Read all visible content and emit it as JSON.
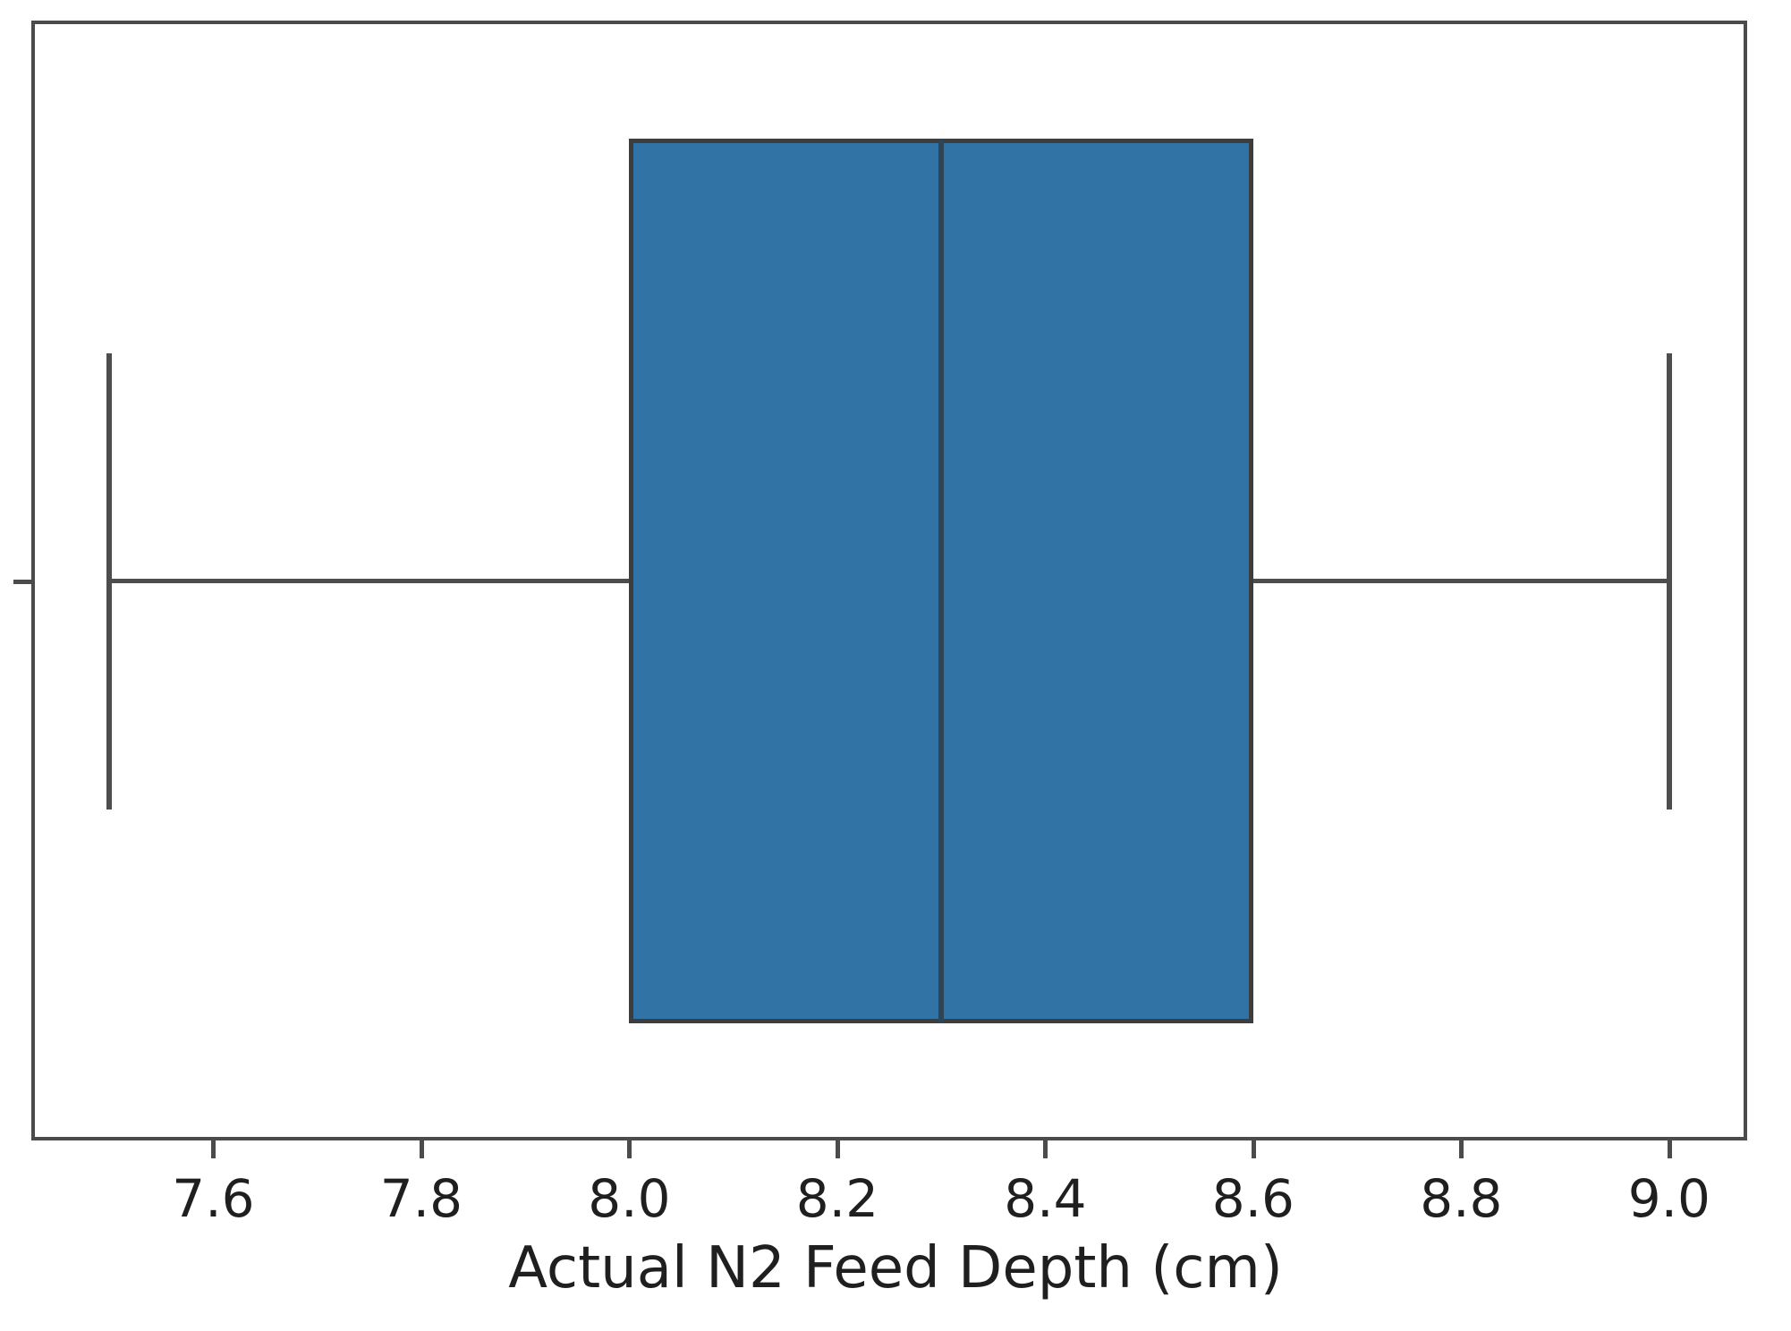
{
  "figure": {
    "background": "#ffffff"
  },
  "chart_data": {
    "type": "box",
    "orientation": "horizontal",
    "title": "",
    "xlabel": "Actual N2 Feed Depth (cm)",
    "ylabel": "",
    "grid": false,
    "legend": null,
    "xlim": [
      7.425,
      9.075
    ],
    "x_tick_labels": [
      "7.6",
      "7.8",
      "8.0",
      "8.2",
      "8.4",
      "8.6",
      "8.8",
      "9.0"
    ],
    "x_tick_values": [
      7.6,
      7.8,
      8.0,
      8.2,
      8.4,
      8.6,
      8.8,
      9.0
    ],
    "y_categories": [
      ""
    ],
    "series": [
      {
        "name": "Actual N2 Feed Depth",
        "whisker_low": 7.5,
        "q1": 8.0,
        "median": 8.3,
        "q3": 8.6,
        "whisker_high": 9.0,
        "outliers": []
      }
    ],
    "colors": {
      "box_fill": "#3173a5",
      "box_edge": "#3d3d3d",
      "median_line": "#2e4457",
      "whisker": "#4d4d4d",
      "spine": "#4b4b4b",
      "tick_label": "#1f1f1f"
    }
  }
}
